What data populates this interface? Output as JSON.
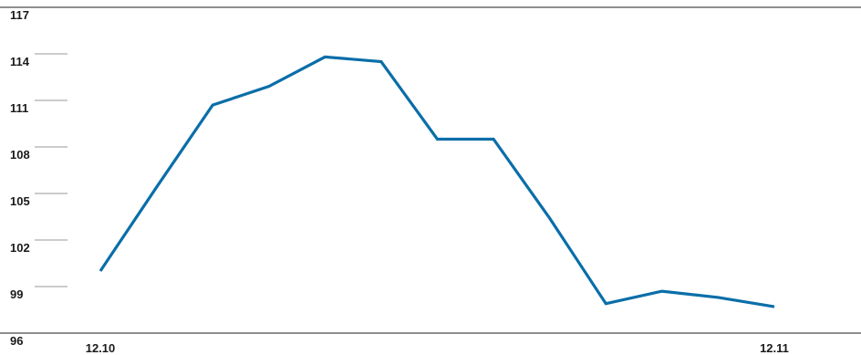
{
  "chart_data": {
    "type": "line",
    "x": [
      "12.10",
      "",
      "",
      "",
      "",
      "",
      "",
      "",
      "",
      "",
      "",
      "",
      "12.11"
    ],
    "series": [
      {
        "values": [
          100.0,
          105.4,
          110.7,
          111.9,
          113.8,
          113.5,
          108.5,
          108.5,
          103.4,
          97.9,
          98.7,
          98.3,
          97.7
        ]
      }
    ],
    "y_ticks": [
      "117",
      "114",
      "111",
      "108",
      "105",
      "102",
      "99",
      "96"
    ],
    "x_tick_labels": [
      {
        "index": 0,
        "label": "12.10"
      },
      {
        "index": 12,
        "label": "12.11"
      }
    ],
    "ylim": [
      96,
      117
    ],
    "title": "",
    "xlabel": "",
    "ylabel": "",
    "grid": true,
    "legend": "none",
    "colors": {
      "line": "#0a6ea8",
      "grid": "#9a9a9a",
      "axis": "#4a4a4a",
      "text": "#1a1a1a"
    }
  }
}
